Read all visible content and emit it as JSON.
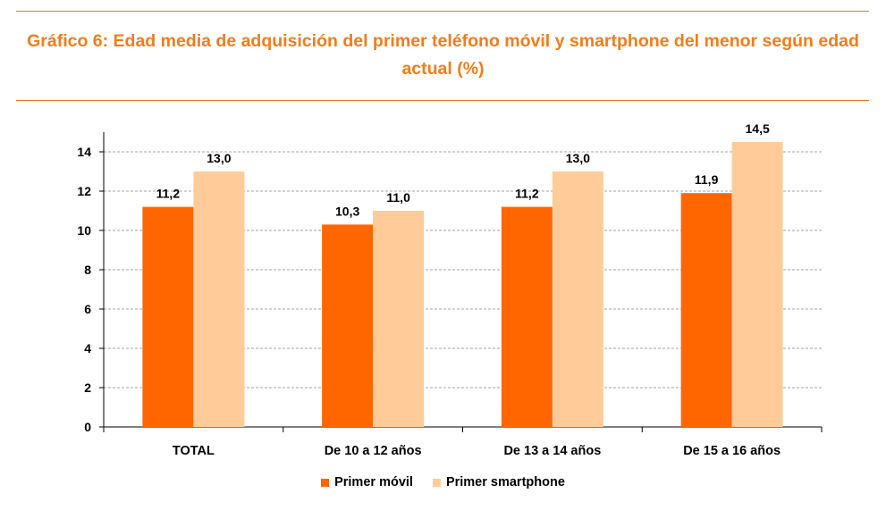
{
  "chart_data": {
    "type": "bar",
    "title": "Gráfico 6: Edad media de adquisición del primer teléfono móvil y smartphone del menor según edad actual (%)",
    "categories": [
      "TOTAL",
      "De 10 a 12 años",
      "De 13 a 14 años",
      "De 15 a 16 años"
    ],
    "series": [
      {
        "name": "Primer móvil",
        "color": "#ff6600",
        "values": [
          11.2,
          10.3,
          11.2,
          11.9
        ],
        "labels": [
          "11,2",
          "10,3",
          "11,2",
          "11,9"
        ]
      },
      {
        "name": "Primer smartphone",
        "color": "#ffcc99",
        "values": [
          13.0,
          11.0,
          13.0,
          14.5
        ],
        "labels": [
          "13,0",
          "11,0",
          "13,0",
          "14,5"
        ]
      }
    ],
    "ylim": [
      0,
      14
    ],
    "yticks": [
      0,
      2,
      4,
      6,
      8,
      10,
      12,
      14
    ],
    "grid": true,
    "legend": "bottom"
  }
}
